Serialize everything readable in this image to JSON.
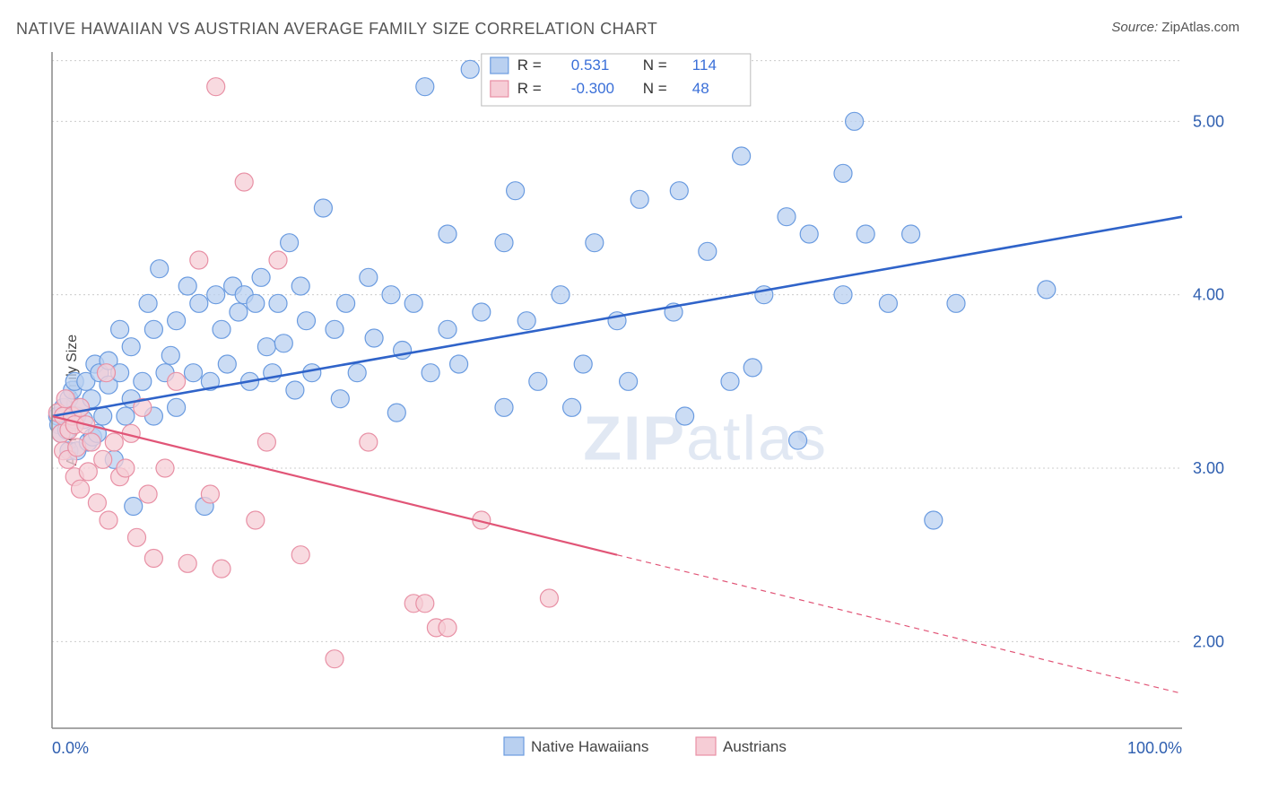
{
  "title": "NATIVE HAWAIIAN VS AUSTRIAN AVERAGE FAMILY SIZE CORRELATION CHART",
  "source_label": "Source:",
  "source_name": "ZipAtlas.com",
  "y_axis_label": "Average Family Size",
  "watermark_bold": "ZIP",
  "watermark_rest": "atlas",
  "chart": {
    "type": "scatter",
    "xlim": [
      0,
      100
    ],
    "ylim": [
      1.5,
      5.4
    ],
    "x_ticks": [
      {
        "v": 0,
        "label": "0.0%"
      },
      {
        "v": 100,
        "label": "100.0%"
      }
    ],
    "y_ticks": [
      {
        "v": 2.0,
        "label": "2.00"
      },
      {
        "v": 3.0,
        "label": "3.00"
      },
      {
        "v": 4.0,
        "label": "4.00"
      },
      {
        "v": 5.0,
        "label": "5.00"
      }
    ],
    "grid_y": [
      2.0,
      3.0,
      4.0,
      5.0,
      5.35
    ],
    "background_color": "#ffffff",
    "grid_color": "#cccccc",
    "axis_color": "#888888",
    "marker_radius": 10,
    "marker_stroke_width": 1.2,
    "series": [
      {
        "id": "hawaiians",
        "label": "Native Hawaiians",
        "fill": "#b9d0f0",
        "stroke": "#6a9be0",
        "line_color": "#2f63c9",
        "line_width": 2.6,
        "R_label": "R =",
        "R": "0.531",
        "N_label": "N =",
        "N": "114",
        "trend": {
          "x1": 0,
          "y1": 3.3,
          "x2": 100,
          "y2": 4.45,
          "dash_from_x": null
        },
        "points": [
          [
            0.5,
            3.3
          ],
          [
            0.6,
            3.25
          ],
          [
            0.8,
            3.2
          ],
          [
            1.0,
            3.35
          ],
          [
            1.2,
            3.3
          ],
          [
            1.3,
            3.22
          ],
          [
            1.5,
            3.4
          ],
          [
            1.5,
            3.1
          ],
          [
            1.8,
            3.45
          ],
          [
            2.0,
            3.28
          ],
          [
            2.0,
            3.5
          ],
          [
            2.2,
            3.1
          ],
          [
            2.2,
            3.3
          ],
          [
            2.5,
            3.35
          ],
          [
            2.8,
            3.28
          ],
          [
            3.0,
            3.5
          ],
          [
            3.2,
            3.15
          ],
          [
            3.5,
            3.4
          ],
          [
            3.6,
            3.18
          ],
          [
            3.8,
            3.6
          ],
          [
            4.0,
            3.2
          ],
          [
            4.2,
            3.55
          ],
          [
            4.5,
            3.3
          ],
          [
            5.0,
            3.48
          ],
          [
            5.0,
            3.62
          ],
          [
            5.5,
            3.05
          ],
          [
            6.0,
            3.55
          ],
          [
            6.0,
            3.8
          ],
          [
            6.5,
            3.3
          ],
          [
            7.0,
            3.7
          ],
          [
            7.0,
            3.4
          ],
          [
            7.2,
            2.78
          ],
          [
            8.0,
            3.5
          ],
          [
            8.5,
            3.95
          ],
          [
            9.0,
            3.3
          ],
          [
            9.0,
            3.8
          ],
          [
            9.5,
            4.15
          ],
          [
            10.0,
            3.55
          ],
          [
            10.5,
            3.65
          ],
          [
            11.0,
            3.85
          ],
          [
            11.0,
            3.35
          ],
          [
            12.0,
            4.05
          ],
          [
            12.5,
            3.55
          ],
          [
            13.0,
            3.95
          ],
          [
            13.5,
            2.78
          ],
          [
            14.0,
            3.5
          ],
          [
            14.5,
            4.0
          ],
          [
            15.0,
            3.8
          ],
          [
            15.5,
            3.6
          ],
          [
            16.0,
            4.05
          ],
          [
            16.5,
            3.9
          ],
          [
            17.0,
            4.0
          ],
          [
            17.5,
            3.5
          ],
          [
            18.0,
            3.95
          ],
          [
            18.5,
            4.1
          ],
          [
            19.0,
            3.7
          ],
          [
            19.5,
            3.55
          ],
          [
            20.0,
            3.95
          ],
          [
            20.5,
            3.72
          ],
          [
            21.0,
            4.3
          ],
          [
            21.5,
            3.45
          ],
          [
            22.0,
            4.05
          ],
          [
            22.5,
            3.85
          ],
          [
            23.0,
            3.55
          ],
          [
            24.0,
            4.5
          ],
          [
            25.0,
            3.8
          ],
          [
            25.5,
            3.4
          ],
          [
            26.0,
            3.95
          ],
          [
            27.0,
            3.55
          ],
          [
            28.0,
            4.1
          ],
          [
            28.5,
            3.75
          ],
          [
            30.0,
            4.0
          ],
          [
            30.5,
            3.32
          ],
          [
            31.0,
            3.68
          ],
          [
            32.0,
            3.95
          ],
          [
            33.0,
            5.2
          ],
          [
            33.5,
            3.55
          ],
          [
            35.0,
            3.8
          ],
          [
            35.0,
            4.35
          ],
          [
            36.0,
            3.6
          ],
          [
            37.0,
            5.3
          ],
          [
            38.0,
            3.9
          ],
          [
            40.0,
            3.35
          ],
          [
            40.0,
            4.3
          ],
          [
            41.0,
            4.6
          ],
          [
            42.0,
            3.85
          ],
          [
            43.0,
            3.5
          ],
          [
            45.0,
            4.0
          ],
          [
            46.0,
            3.35
          ],
          [
            47.0,
            3.6
          ],
          [
            48.0,
            4.3
          ],
          [
            50.0,
            3.85
          ],
          [
            51.0,
            3.5
          ],
          [
            52.0,
            4.55
          ],
          [
            55.0,
            3.9
          ],
          [
            55.5,
            4.6
          ],
          [
            56.0,
            3.3
          ],
          [
            58.0,
            4.25
          ],
          [
            60.0,
            3.5
          ],
          [
            61.0,
            4.8
          ],
          [
            62.0,
            3.58
          ],
          [
            63.0,
            4.0
          ],
          [
            65.0,
            4.45
          ],
          [
            66.0,
            3.16
          ],
          [
            67.0,
            4.35
          ],
          [
            70.0,
            4.7
          ],
          [
            71.0,
            5.0
          ],
          [
            72.0,
            4.35
          ],
          [
            74.0,
            3.95
          ],
          [
            76.0,
            4.35
          ],
          [
            78.0,
            2.7
          ],
          [
            80.0,
            3.95
          ],
          [
            88.0,
            4.03
          ],
          [
            70.0,
            4.0
          ]
        ]
      },
      {
        "id": "austrians",
        "label": "Austrians",
        "fill": "#f6cdd6",
        "stroke": "#e890a5",
        "line_color": "#e15577",
        "line_width": 2.2,
        "R_label": "R =",
        "R": "-0.300",
        "N_label": "N =",
        "N": "48",
        "trend": {
          "x1": 0,
          "y1": 3.3,
          "x2": 100,
          "y2": 1.7,
          "dash_from_x": 50
        },
        "points": [
          [
            0.5,
            3.32
          ],
          [
            0.8,
            3.2
          ],
          [
            1.0,
            3.3
          ],
          [
            1.0,
            3.1
          ],
          [
            1.2,
            3.4
          ],
          [
            1.4,
            3.05
          ],
          [
            1.5,
            3.22
          ],
          [
            1.8,
            3.3
          ],
          [
            2.0,
            2.95
          ],
          [
            2.0,
            3.25
          ],
          [
            2.2,
            3.12
          ],
          [
            2.5,
            3.35
          ],
          [
            2.5,
            2.88
          ],
          [
            3.0,
            3.25
          ],
          [
            3.2,
            2.98
          ],
          [
            3.5,
            3.15
          ],
          [
            4.0,
            2.8
          ],
          [
            4.5,
            3.05
          ],
          [
            4.8,
            3.55
          ],
          [
            5.0,
            2.7
          ],
          [
            5.5,
            3.15
          ],
          [
            6.0,
            2.95
          ],
          [
            6.5,
            3.0
          ],
          [
            7.0,
            3.2
          ],
          [
            7.5,
            2.6
          ],
          [
            8.0,
            3.35
          ],
          [
            8.5,
            2.85
          ],
          [
            9.0,
            2.48
          ],
          [
            10.0,
            3.0
          ],
          [
            11.0,
            3.5
          ],
          [
            12.0,
            2.45
          ],
          [
            13.0,
            4.2
          ],
          [
            14.0,
            2.85
          ],
          [
            14.5,
            5.2
          ],
          [
            15.0,
            2.42
          ],
          [
            17.0,
            4.65
          ],
          [
            18.0,
            2.7
          ],
          [
            19.0,
            3.15
          ],
          [
            20.0,
            4.2
          ],
          [
            22.0,
            2.5
          ],
          [
            25.0,
            1.9
          ],
          [
            28.0,
            3.15
          ],
          [
            32.0,
            2.22
          ],
          [
            33.0,
            2.22
          ],
          [
            34.0,
            2.08
          ],
          [
            35.0,
            2.08
          ],
          [
            38.0,
            2.7
          ],
          [
            44.0,
            2.25
          ]
        ]
      }
    ],
    "legend_top": {
      "box_fill": "#ffffff",
      "box_stroke": "#bbbbbb",
      "swatch_size": 20
    },
    "legend_bottom": {
      "swatch_size": 22
    }
  }
}
